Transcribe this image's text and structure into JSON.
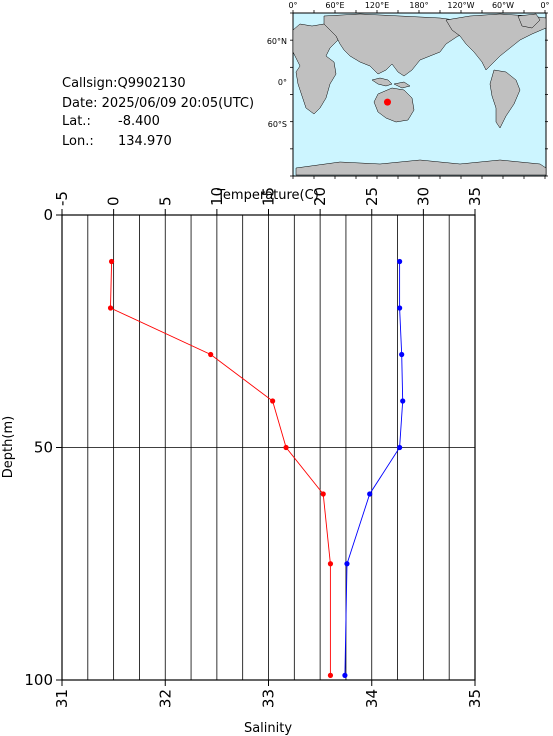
{
  "station": {
    "callsign": "Callsign:Q9902130",
    "date": "Date:  2025/06/09 20:05(UTC)",
    "lat_label": "Lat.:",
    "lat_value": "-8.400",
    "lon_label": "Lon.:",
    "lon_value": "134.970"
  },
  "map": {
    "lon_labels": [
      "0°",
      "60°E",
      "120°E",
      "180°",
      "120°W",
      "60°W",
      "0°"
    ],
    "lat_labels": [
      "60°N",
      "0°",
      "60°S"
    ],
    "ocean_color": "#ccf5ff",
    "land_color": "#c0c0c0",
    "marker_color": "#ff0000",
    "marker": {
      "lon": 134.97,
      "lat": -8.4
    }
  },
  "chart_data": {
    "type": "line",
    "title": "",
    "ylabel": "Depth(m)",
    "ylim": [
      0,
      100
    ],
    "y_ticks": [
      0,
      50,
      100
    ],
    "y_inverted": true,
    "top_axis": {
      "label": "Temperature(C)",
      "lim": [
        -5,
        35
      ],
      "ticks": [
        -5,
        0,
        5,
        10,
        15,
        20,
        25,
        30,
        35
      ]
    },
    "bottom_axis": {
      "label": "Salinity",
      "lim": [
        31,
        35
      ],
      "ticks": [
        31,
        32,
        33,
        34,
        35
      ]
    },
    "grid": "vertical every 2.5 C, horizontal at 50 m",
    "series": [
      {
        "axis": "temperature",
        "color": "#ff0000",
        "points": [
          {
            "depth": 10,
            "value": -0.2
          },
          {
            "depth": 20,
            "value": -0.3
          },
          {
            "depth": 30,
            "value": 9.4
          },
          {
            "depth": 40,
            "value": 15.4
          },
          {
            "depth": 50,
            "value": 16.7
          },
          {
            "depth": 60,
            "value": 20.3
          },
          {
            "depth": 75,
            "value": 21.0
          },
          {
            "depth": 99,
            "value": 21.0
          }
        ]
      },
      {
        "axis": "salinity",
        "color": "#0000ff",
        "points": [
          {
            "depth": 10,
            "value": 34.27
          },
          {
            "depth": 20,
            "value": 34.27
          },
          {
            "depth": 30,
            "value": 34.29
          },
          {
            "depth": 40,
            "value": 34.3
          },
          {
            "depth": 50,
            "value": 34.27
          },
          {
            "depth": 60,
            "value": 33.98
          },
          {
            "depth": 75,
            "value": 33.76
          },
          {
            "depth": 99,
            "value": 33.74
          }
        ]
      }
    ]
  }
}
